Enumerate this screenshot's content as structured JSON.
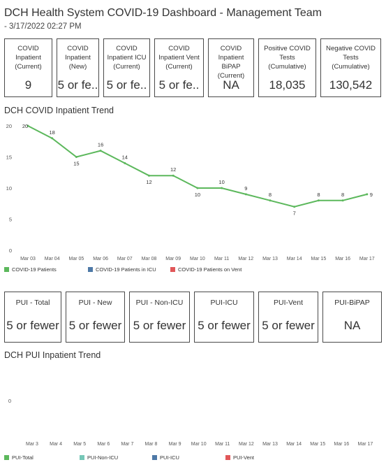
{
  "header": {
    "title": "DCH Health System COVID-19 Dashboard - Management Team",
    "subtitle": "- 3/17/2022 02:27 PM"
  },
  "covid_cards": [
    {
      "label": "COVID\nInpatient\n(Current)",
      "value": "9"
    },
    {
      "label": "COVID\nInpatient\n(New)",
      "value": "5 or fe.."
    },
    {
      "label": "COVID\nInpatient ICU\n(Current)",
      "value": "5 or fe.."
    },
    {
      "label": "COVID\nInpatient Vent\n(Current)",
      "value": "5 or fe.."
    },
    {
      "label": "COVID\nInpatient BiPAP\n(Current)",
      "value": "NA"
    },
    {
      "label": "Positive COVID\nTests\n(Cumulative)",
      "value": "18,035"
    },
    {
      "label": "Negative COVID\nTests\n(Cumulative)",
      "value": "130,542"
    }
  ],
  "covid_trend": {
    "title": "DCH COVID Inpatient Trend",
    "legend": [
      {
        "label": "COVID-19 Patients",
        "color": "#5cb85c"
      },
      {
        "label": "COVID-19 Patients in ICU",
        "color": "#4e79a7"
      },
      {
        "label": "COVID-19 Patients on Vent",
        "color": "#e15759"
      }
    ]
  },
  "pui_cards": [
    {
      "label": "PUI - Total",
      "value": "5 or fewer"
    },
    {
      "label": "PUI - New",
      "value": "5 or fewer"
    },
    {
      "label": "PUI - Non-ICU",
      "value": "5 or fewer"
    },
    {
      "label": "PUI-ICU",
      "value": "5 or fewer"
    },
    {
      "label": "PUI-Vent",
      "value": "5 or fewer"
    },
    {
      "label": "PUI-BiPAP",
      "value": "NA"
    }
  ],
  "pui_trend": {
    "title": "DCH PUI Inpatient Trend",
    "legend": [
      {
        "label": "PUI-Total",
        "color": "#5cb85c"
      },
      {
        "label": "PUI-Non-ICU",
        "color": "#76c7b7"
      },
      {
        "label": "PUI-ICU",
        "color": "#4e79a7"
      },
      {
        "label": "PUI-Vent",
        "color": "#e15759"
      }
    ]
  },
  "chart_data": [
    {
      "type": "line",
      "title": "DCH COVID Inpatient Trend",
      "categories": [
        "Mar 03",
        "Mar 04",
        "Mar 05",
        "Mar 06",
        "Mar 07",
        "Mar 08",
        "Mar 09",
        "Mar 10",
        "Mar 11",
        "Mar 12",
        "Mar 13",
        "Mar 14",
        "Mar 15",
        "Mar 16",
        "Mar 17"
      ],
      "series": [
        {
          "name": "COVID-19 Patients",
          "color": "#5cb85c",
          "values": [
            20,
            18,
            15,
            16,
            14,
            12,
            12,
            10,
            10,
            9,
            8,
            7,
            8,
            8,
            9
          ]
        }
      ],
      "yticks": [
        0,
        5,
        10,
        15,
        20
      ],
      "ylim": [
        0,
        20
      ],
      "grid": false,
      "legend": "bottom"
    },
    {
      "type": "line",
      "title": "DCH PUI Inpatient Trend",
      "categories": [
        "Mar 3",
        "Mar 4",
        "Mar 5",
        "Mar 6",
        "Mar 7",
        "Mar 8",
        "Mar 9",
        "Mar 10",
        "Mar 11",
        "Mar 12",
        "Mar 13",
        "Mar 14",
        "Mar 15",
        "Mar 16",
        "Mar 17"
      ],
      "series": [],
      "yticks": [
        0
      ],
      "grid": false,
      "legend": "bottom"
    }
  ]
}
